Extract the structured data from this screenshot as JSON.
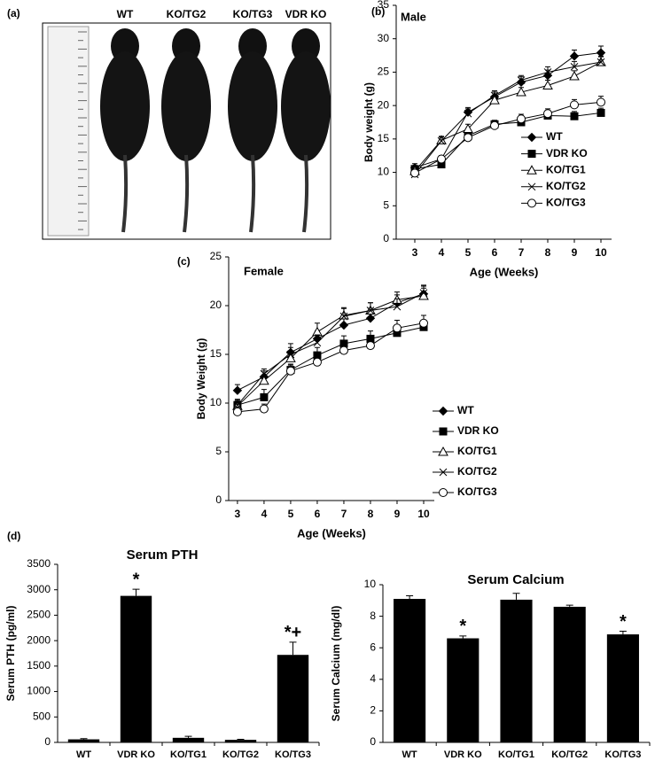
{
  "photo": {
    "panel": "(a)",
    "groups": [
      "WT",
      "KO/TG2",
      "KO/TG3",
      "VDR KO"
    ]
  },
  "chart_data": [
    {
      "type": "line",
      "panel": "(b)",
      "title": "Male",
      "x_label": "Age (Weeks)",
      "y_label": "Body weight (g)",
      "x": [
        3,
        4,
        5,
        6,
        7,
        8,
        9,
        10
      ],
      "xlim": [
        2.3,
        10.4
      ],
      "xticks": [
        3,
        4,
        5,
        6,
        7,
        8,
        9,
        10
      ],
      "ylim": [
        0,
        35
      ],
      "yticks": [
        0,
        5,
        10,
        15,
        20,
        25,
        30,
        35
      ],
      "legend": "right",
      "series": [
        {
          "name": "WT",
          "color": "#000000",
          "marker": "diamond",
          "values": [
            10.7,
            12,
            19,
            21.3,
            23.5,
            24.5,
            27.4,
            27.9
          ],
          "errors": [
            0.6,
            0.5,
            0.7,
            0.7,
            0.8,
            0.8,
            0.9,
            1.0
          ]
        },
        {
          "name": "VDR KO",
          "color": "#000000",
          "marker": "square",
          "values": [
            10.5,
            11.2,
            15.5,
            17.2,
            17.5,
            18.5,
            18.4,
            18.9
          ],
          "errors": [
            0.5,
            0.5,
            0.6,
            0.6,
            0.7,
            0.6,
            0.7,
            0.7
          ]
        },
        {
          "name": "KO/TG1",
          "color": "#000000",
          "marker": "triangle",
          "values": [
            10.2,
            14.8,
            16.5,
            20.8,
            22,
            23,
            24.4,
            26.5
          ],
          "errors": [
            0.5,
            0.6,
            0.7,
            0.7,
            0.7,
            0.8,
            0.8,
            0.9
          ]
        },
        {
          "name": "KO/TG2",
          "color": "#000000",
          "marker": "x",
          "values": [
            9.7,
            14.7,
            18.8,
            21.5,
            23.8,
            25,
            25.8,
            26.5
          ],
          "errors": [
            0.5,
            0.6,
            0.7,
            0.7,
            0.7,
            0.8,
            0.8,
            0.8
          ]
        },
        {
          "name": "KO/TG3",
          "color": "#000000",
          "marker": "circle",
          "values": [
            9.9,
            12,
            15.2,
            17,
            18,
            18.8,
            20.1,
            20.5
          ],
          "errors": [
            0.5,
            0.5,
            0.6,
            0.6,
            0.7,
            0.7,
            0.8,
            0.9
          ]
        }
      ]
    },
    {
      "type": "line",
      "panel": "(c)",
      "title": "Female",
      "x_label": "Age (Weeks)",
      "y_label": "Body Weight (g)",
      "x": [
        3,
        4,
        5,
        6,
        7,
        8,
        9,
        10
      ],
      "xlim": [
        2.67,
        10.4
      ],
      "xticks": [
        3,
        4,
        5,
        6,
        7,
        8,
        9,
        10
      ],
      "ylim": [
        0,
        25
      ],
      "yticks": [
        0,
        5,
        10,
        15,
        20,
        25
      ],
      "legend": "outside right",
      "series": [
        {
          "name": "WT",
          "color": "#000000",
          "marker": "diamond",
          "values": [
            11.3,
            12.7,
            15.2,
            16.6,
            18,
            18.7,
            20.3,
            21.2
          ],
          "errors": [
            0.6,
            0.6,
            0.9,
            0.8,
            0.8,
            0.7,
            0.8,
            0.8
          ]
        },
        {
          "name": "VDR KO",
          "color": "#000000",
          "marker": "square",
          "values": [
            9.8,
            10.6,
            13.4,
            14.9,
            16.1,
            16.6,
            17.2,
            17.8
          ],
          "errors": [
            0.6,
            0.8,
            0.6,
            0.8,
            0.8,
            0.8,
            0.7,
            0.7
          ]
        },
        {
          "name": "KO/TG1",
          "color": "#000000",
          "marker": "triangle",
          "values": [
            9.7,
            12.3,
            14.6,
            17.3,
            19,
            19.5,
            20.6,
            21
          ],
          "errors": [
            0.5,
            0.6,
            0.7,
            0.9,
            0.8,
            0.8,
            0.8,
            0.8
          ]
        },
        {
          "name": "KO/TG2",
          "color": "#000000",
          "marker": "x",
          "values": [
            9.8,
            13,
            15,
            16.2,
            18.9,
            19.5,
            19.9,
            21.3
          ],
          "errors": [
            0.5,
            0.5,
            0.7,
            0.8,
            0.8,
            0.8,
            0.8,
            0.8
          ]
        },
        {
          "name": "KO/TG3",
          "color": "#000000",
          "marker": "circle",
          "values": [
            9.1,
            9.4,
            13.3,
            14.2,
            15.4,
            15.9,
            17.7,
            18.2
          ],
          "errors": [
            0.5,
            0.5,
            0.6,
            0.6,
            0.7,
            0.7,
            0.8,
            0.8
          ]
        }
      ]
    },
    {
      "type": "bar",
      "panel": "(d)",
      "title": "Serum PTH",
      "y_label": "Serum PTH (pg/ml)",
      "categories": [
        "WT",
        "VDR KO",
        "KO/TG1",
        "KO/TG2",
        "KO/TG3"
      ],
      "values": [
        60,
        2880,
        90,
        50,
        1720
      ],
      "errors": [
        15,
        130,
        30,
        10,
        250
      ],
      "color": "#000000",
      "markers": [
        null,
        "*",
        null,
        null,
        "*+"
      ],
      "ylim": [
        0,
        3500
      ],
      "yticks": [
        0,
        500,
        1000,
        1500,
        2000,
        2500,
        3000,
        3500
      ]
    },
    {
      "type": "bar",
      "title": "Serum Calcium",
      "y_label": "Serum Calcium (mg/dl)",
      "categories": [
        "WT",
        "VDR KO",
        "KO/TG1",
        "KO/TG2",
        "KO/TG3"
      ],
      "values": [
        9.1,
        6.6,
        9.05,
        8.6,
        6.85
      ],
      "errors": [
        0.2,
        0.15,
        0.4,
        0.1,
        0.2
      ],
      "color": "#000000",
      "markers": [
        null,
        "*",
        null,
        null,
        "*"
      ],
      "ylim": [
        0,
        10
      ],
      "yticks": [
        0,
        2,
        4,
        6,
        8,
        10
      ]
    }
  ]
}
